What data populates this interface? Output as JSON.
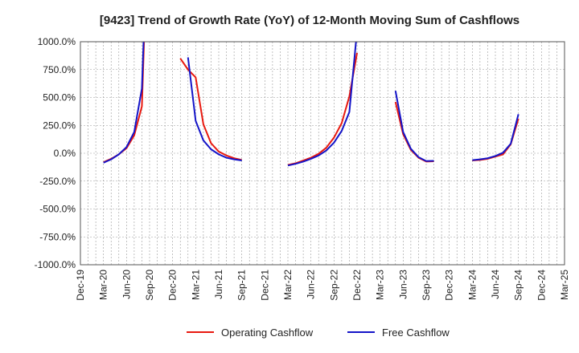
{
  "chart_data": {
    "type": "line",
    "title": "[9423]  Trend of Growth Rate (YoY) of 12-Month Moving Sum of Cashflows",
    "xlabel": "",
    "ylabel": "",
    "ylim": [
      -1000,
      1000
    ],
    "yticks": [
      "1000.0%",
      "750.0%",
      "500.0%",
      "250.0%",
      "0.0%",
      "-250.0%",
      "-500.0%",
      "-750.0%",
      "-1000.0%"
    ],
    "ytick_values": [
      1000,
      750,
      500,
      250,
      0,
      -250,
      -500,
      -750,
      -1000
    ],
    "xticks": [
      "Dec-19",
      "Mar-20",
      "Jun-20",
      "Sep-20",
      "Dec-20",
      "Mar-21",
      "Jun-21",
      "Sep-21",
      "Dec-21",
      "Mar-22",
      "Jun-22",
      "Sep-22",
      "Dec-22",
      "Mar-23",
      "Jun-23",
      "Sep-23",
      "Dec-23",
      "Mar-24",
      "Jun-24",
      "Sep-24",
      "Dec-24",
      "Mar-25"
    ],
    "grid": true,
    "legend_position": "bottom",
    "series": [
      {
        "name": "Operating Cashflow",
        "color": "#e8190f",
        "x": [
          "2019-12",
          "2020-03",
          "2020-04",
          "2020-05",
          "2020-06",
          "2020-07",
          "2020-08",
          "2020-09",
          "2021-01",
          "2021-02",
          "2021-03",
          "2021-04",
          "2021-05",
          "2021-06",
          "2021-07",
          "2021-08",
          "2021-09",
          "2021-12",
          "2022-03",
          "2022-04",
          "2022-05",
          "2022-06",
          "2022-07",
          "2022-08",
          "2022-09",
          "2022-10",
          "2022-11",
          "2022-12",
          "2023-05",
          "2023-06",
          "2023-07",
          "2023-08",
          "2023-09",
          "2023-10",
          "2023-12",
          "2024-03",
          "2024-04",
          "2024-05",
          "2024-06",
          "2024-07",
          "2024-08",
          "2024-09"
        ],
        "values": [
          -85,
          -80,
          -50,
          -10,
          45,
          160,
          420,
          2500,
          850,
          750,
          680,
          260,
          90,
          15,
          -20,
          -45,
          -60,
          -85,
          -105,
          -90,
          -65,
          -40,
          -5,
          50,
          140,
          270,
          510,
          900,
          460,
          170,
          30,
          -40,
          -75,
          -72,
          -68,
          -65,
          -60,
          -50,
          -30,
          -10,
          80,
          310
        ]
      },
      {
        "name": "Free Cashflow",
        "color": "#1414c8",
        "x": [
          "2019-12",
          "2020-03",
          "2020-04",
          "2020-05",
          "2020-06",
          "2020-07",
          "2020-08",
          "2020-09",
          "2021-02",
          "2021-03",
          "2021-04",
          "2021-05",
          "2021-06",
          "2021-07",
          "2021-08",
          "2021-09",
          "2021-12",
          "2022-03",
          "2022-04",
          "2022-05",
          "2022-06",
          "2022-07",
          "2022-08",
          "2022-09",
          "2022-10",
          "2022-11",
          "2022-12",
          "2023-05",
          "2023-06",
          "2023-07",
          "2023-08",
          "2023-09",
          "2023-10",
          "2023-12",
          "2024-03",
          "2024-04",
          "2024-05",
          "2024-06",
          "2024-07",
          "2024-08",
          "2024-09"
        ],
        "values": [
          -90,
          -85,
          -55,
          -10,
          55,
          190,
          580,
          2500,
          860,
          290,
          115,
          35,
          -10,
          -40,
          -55,
          -65,
          -85,
          -110,
          -95,
          -75,
          -50,
          -20,
          25,
          95,
          200,
          370,
          1100,
          560,
          190,
          40,
          -35,
          -70,
          -68,
          -65,
          -62,
          -55,
          -45,
          -25,
          5,
          85,
          350
        ]
      }
    ]
  }
}
